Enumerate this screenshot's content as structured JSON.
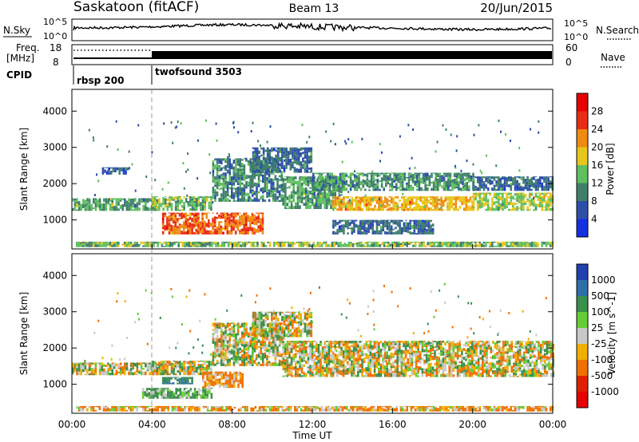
{
  "header": {
    "station": "Saskatoon (fitACF)",
    "beam": "Beam 13",
    "date": "20/Jun/2015"
  },
  "summary_panels": {
    "nsky_label": "N.Sky",
    "nsearch_label": "N.Search",
    "nsky_ticks": [
      "10^5",
      "10^0"
    ],
    "freq_label_line1": "Freq.",
    "freq_label_line2": "[MHz]",
    "freq_ticks": [
      "18",
      "8"
    ],
    "nave_label": "Nave",
    "nave_ticks": [
      "60",
      "0"
    ],
    "cpid_label": "CPID",
    "cpid_segments": [
      {
        "label": "rbsp 200",
        "start_hour": 0
      },
      {
        "label": "twofsound 3503",
        "start_hour": 4
      }
    ]
  },
  "time_axis": {
    "label": "Time UT",
    "ticks": [
      "00:00",
      "04:00",
      "08:00",
      "12:00",
      "16:00",
      "20:00",
      "00:00"
    ],
    "range_hours": [
      0,
      24
    ]
  },
  "chart_data": [
    {
      "type": "heatmap",
      "name": "power",
      "ylabel": "Slant Range [km]",
      "ylim": [
        200,
        4600
      ],
      "yticks": [
        1000,
        2000,
        3000,
        4000
      ],
      "colorbar": {
        "label": "Power [dB]",
        "ticks": [
          "4",
          "8",
          "12",
          "16",
          "20",
          "24",
          "28"
        ],
        "range": [
          0,
          30
        ],
        "colors": [
          "#1530e0",
          "#2e4fa8",
          "#3f7f6a",
          "#5fbf5f",
          "#e6c619",
          "#f08a10",
          "#e82c16",
          "#e60000"
        ]
      },
      "bands": [
        {
          "t0": 0,
          "t1": 4.2,
          "r0": 1250,
          "r1": 1600,
          "v": 12
        },
        {
          "t0": 1.5,
          "t1": 2.8,
          "r0": 2250,
          "r1": 2450,
          "v": 6
        },
        {
          "t0": 4,
          "t1": 7,
          "r0": 1250,
          "r1": 1650,
          "v": 14
        },
        {
          "t0": 7,
          "t1": 10.5,
          "r0": 1500,
          "r1": 2700,
          "v": 10
        },
        {
          "t0": 9,
          "t1": 12,
          "r0": 2300,
          "r1": 3000,
          "v": 8
        },
        {
          "t0": 4.5,
          "t1": 9.5,
          "r0": 600,
          "r1": 1200,
          "v": 24
        },
        {
          "t0": 10.5,
          "t1": 13.5,
          "r0": 1300,
          "r1": 2200,
          "v": 12
        },
        {
          "t0": 13,
          "t1": 20,
          "r0": 1250,
          "r1": 1650,
          "v": 20
        },
        {
          "t0": 12,
          "t1": 20,
          "r0": 1800,
          "r1": 2300,
          "v": 11
        },
        {
          "t0": 20,
          "t1": 24,
          "r0": 1250,
          "r1": 1750,
          "v": 16
        },
        {
          "t0": 20,
          "t1": 24,
          "r0": 1800,
          "r1": 2200,
          "v": 8
        },
        {
          "t0": 13,
          "t1": 18,
          "r0": 600,
          "r1": 1000,
          "v": 8
        },
        {
          "t0": 0.2,
          "t1": 24,
          "r0": 250,
          "r1": 400,
          "v": 14
        }
      ]
    },
    {
      "type": "heatmap",
      "name": "velocity",
      "ylabel": "Slant Range [km]",
      "ylim": [
        200,
        4600
      ],
      "yticks": [
        1000,
        2000,
        3000,
        4000
      ],
      "colorbar": {
        "label": "Velocity [m s^-1]",
        "ticks": [
          "1000",
          "500",
          "100",
          "25",
          "-25",
          "-100",
          "-500",
          "-1000"
        ],
        "colors": [
          "#2040b0",
          "#2f6fa8",
          "#3a8f4a",
          "#66cc33",
          "#c8c8c8",
          "#f0b000",
          "#f07000",
          "#e02000",
          "#e60000"
        ]
      },
      "bands": [
        {
          "t0": 0,
          "t1": 4.2,
          "r0": 1250,
          "r1": 1600,
          "v": 0
        },
        {
          "t0": 4,
          "t1": 7,
          "r0": 1250,
          "r1": 1650,
          "v": 0
        },
        {
          "t0": 7,
          "t1": 10.5,
          "r0": 1500,
          "r1": 2700,
          "v": 0
        },
        {
          "t0": 9,
          "t1": 12,
          "r0": 2300,
          "r1": 3000,
          "v": 0
        },
        {
          "t0": 10.5,
          "t1": 24,
          "r0": 1200,
          "r1": 2200,
          "v": 0
        },
        {
          "t0": 3.5,
          "t1": 7,
          "r0": 600,
          "r1": 900,
          "v": 100
        },
        {
          "t0": 4.5,
          "t1": 6,
          "r0": 1000,
          "r1": 1200,
          "v": 300
        },
        {
          "t0": 6.5,
          "t1": 8.5,
          "r0": 900,
          "r1": 1350,
          "v": -100
        },
        {
          "t0": 0.2,
          "t1": 24,
          "r0": 250,
          "r1": 400,
          "v": -60
        }
      ]
    }
  ],
  "colors": {
    "frame": "#000000",
    "dashed_marker": "#999999",
    "background": "#ffffff"
  }
}
